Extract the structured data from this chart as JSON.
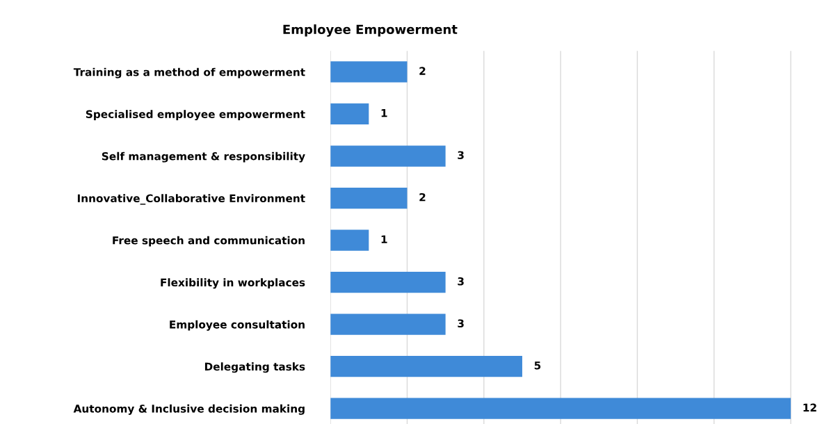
{
  "chart_data": {
    "type": "bar",
    "orientation": "horizontal",
    "title": "Employee Empowerment",
    "categories": [
      "Training as a method of empowerment",
      "Specialised employee empowerment",
      "Self management & responsibility",
      "Innovative_Collaborative Environment",
      "Free speech and communication",
      "Flexibility in workplaces",
      "Employee consultation",
      "Delegating tasks",
      "Autonomy & Inclusive decision making"
    ],
    "values": [
      2,
      1,
      3,
      2,
      1,
      3,
      3,
      5,
      12
    ],
    "color": "#3f8ad8",
    "data_labels": true,
    "xticks": [
      {
        "value": 0,
        "label": null
      },
      {
        "value": 2,
        "label": null
      },
      {
        "value": 4,
        "label": null
      },
      {
        "value": 6,
        "label": null
      },
      {
        "value": 8,
        "label": null
      },
      {
        "value": 10,
        "label": null
      },
      {
        "value": 12,
        "label": null
      }
    ],
    "grid": "x",
    "tick_labels": "y",
    "legend": false
  }
}
